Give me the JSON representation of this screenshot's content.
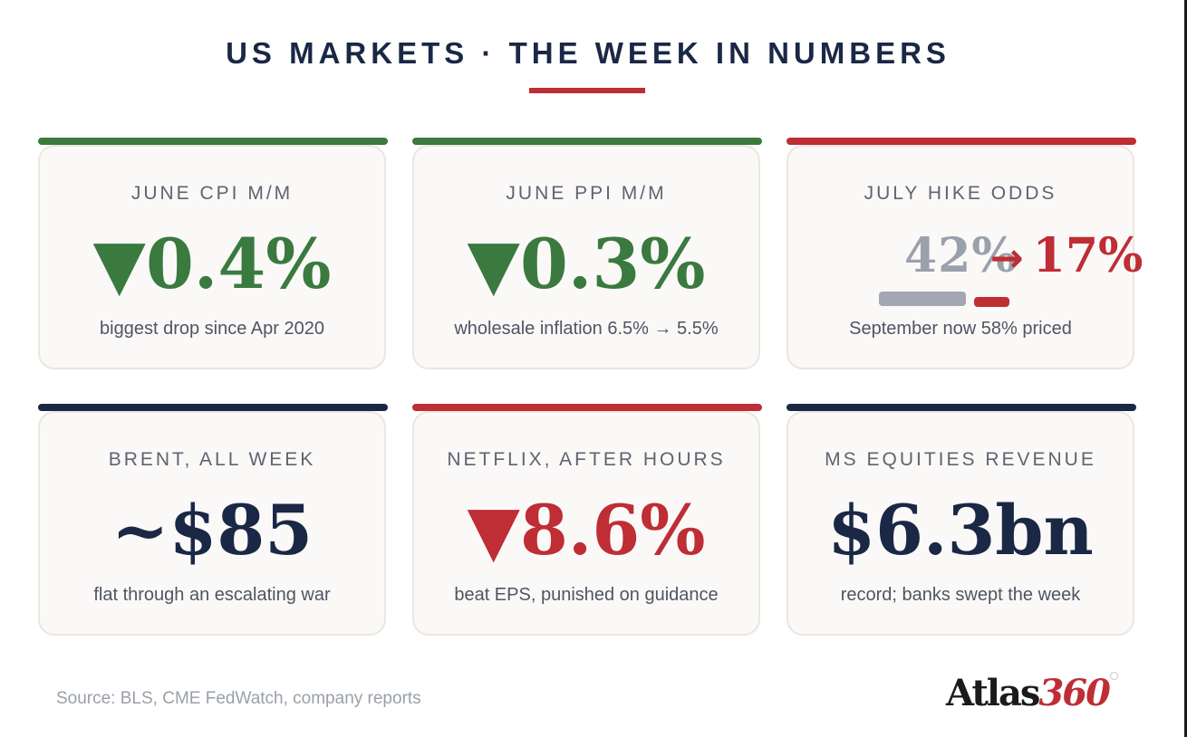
{
  "title": "US MARKETS · THE WEEK IN NUMBERS",
  "colors": {
    "navy": "#1a2846",
    "green": "#3b7a3f",
    "red": "#bf2d35",
    "grey": "#9ba1ac"
  },
  "cards": [
    {
      "label": "JUNE CPI M/M",
      "arrow": "▼",
      "value": "0.4%",
      "note": "biggest drop since Apr 2020",
      "accent": "green"
    },
    {
      "label": "JUNE PPI M/M",
      "arrow": "▼",
      "value": "0.3%",
      "note": "wholesale inflation 6.5% → 5.5%",
      "accent": "green"
    },
    {
      "label": "JULY HIKE ODDS",
      "from_value": "42%",
      "arrow": "→",
      "to_value": "17%",
      "from_level": 0.42,
      "to_level": 0.17,
      "note": "September now 58% priced",
      "accent": "red"
    },
    {
      "label": "BRENT, ALL WEEK",
      "value": "~$85",
      "note": "flat through an escalating war",
      "accent": "navy"
    },
    {
      "label": "NETFLIX, AFTER HOURS",
      "arrow": "▼",
      "value": "8.6%",
      "note": "beat EPS, punished on guidance",
      "accent": "red"
    },
    {
      "label": "MS EQUITIES REVENUE",
      "value": "$6.3bn",
      "note": "record; banks swept the week",
      "accent": "navy"
    }
  ],
  "source": "Source: BLS, CME FedWatch, company reports",
  "logo": {
    "part1": "Atlas",
    "part2": "360"
  }
}
